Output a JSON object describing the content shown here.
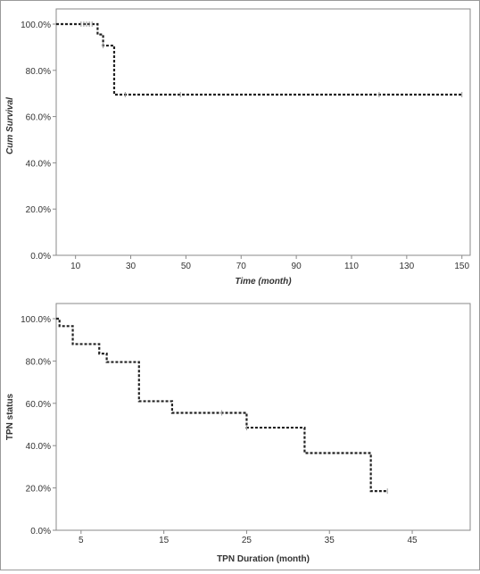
{
  "chart_data": [
    {
      "type": "line",
      "step": true,
      "title": "",
      "xlabel": "Time (month)",
      "ylabel": "Cum Survival",
      "xlim": [
        3,
        153
      ],
      "ylim": [
        0,
        100
      ],
      "x_ticks": [
        10,
        30,
        50,
        70,
        90,
        110,
        130,
        150
      ],
      "y_ticks": [
        0,
        20,
        40,
        60,
        80,
        100
      ],
      "x_tick_labels": [
        "10",
        "30",
        "50",
        "70",
        "90",
        "110",
        "130",
        "150"
      ],
      "y_tick_labels": [
        "0.0%",
        "20.0%",
        "40.0%",
        "60.0%",
        "80.0%",
        "100.0%"
      ],
      "grid": false,
      "series": [
        {
          "name": "",
          "color": "#222222",
          "line_style": "dotted",
          "steps": [
            [
              3,
              100
            ],
            [
              18,
              95.5
            ],
            [
              20,
              90.7
            ],
            [
              24,
              69.5
            ],
            [
              150,
              69.5
            ]
          ],
          "censored_x": [
            12,
            13,
            14,
            15,
            16,
            20,
            28,
            48,
            120,
            150
          ]
        }
      ]
    },
    {
      "type": "line",
      "step": true,
      "title": "",
      "xlabel": "TPN Duration (month)",
      "ylabel": "TPN status",
      "xlim": [
        2,
        52
      ],
      "ylim": [
        0,
        100
      ],
      "x_ticks": [
        5,
        15,
        25,
        35,
        45
      ],
      "y_ticks": [
        0,
        20,
        40,
        60,
        80,
        100
      ],
      "x_tick_labels": [
        "5",
        "15",
        "25",
        "35",
        "45"
      ],
      "y_tick_labels": [
        "0.0%",
        "20.0%",
        "40.0%",
        "60.0%",
        "80.0%",
        "100.0%"
      ],
      "grid": false,
      "series": [
        {
          "name": "",
          "color": "#222222",
          "line_style": "dotted",
          "steps": [
            [
              2,
              100
            ],
            [
              2.4,
              96.5
            ],
            [
              4,
              88
            ],
            [
              7.2,
              83.5
            ],
            [
              8.1,
              79.5
            ],
            [
              12,
              61
            ],
            [
              16,
              55.5
            ],
            [
              25,
              48.5
            ],
            [
              32,
              36.5
            ],
            [
              40,
              18.5
            ],
            [
              42,
              18.5
            ]
          ],
          "censored_x": [
            22,
            25,
            42
          ]
        }
      ]
    }
  ]
}
